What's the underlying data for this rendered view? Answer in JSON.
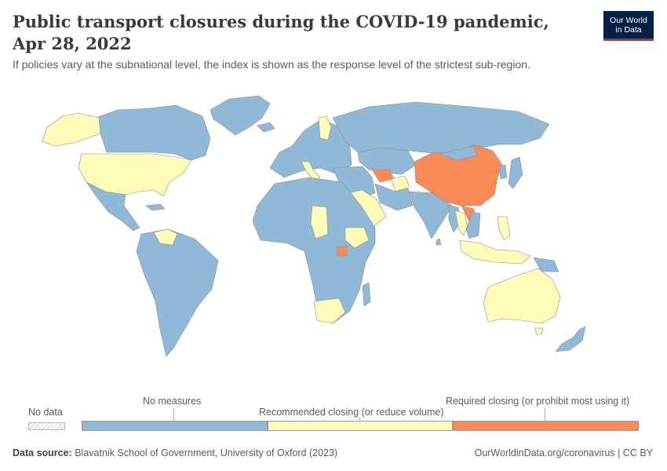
{
  "title": "Public transport closures during the COVID-19 pandemic, Apr 28, 2022",
  "subtitle": "If policies vary at the subnational level, the index is shown as the response level of the strictest sub-region.",
  "logo": {
    "line1": "Our World",
    "line2": "in Data"
  },
  "legend": {
    "no_data": "No data",
    "categories": [
      {
        "label": "No measures",
        "color": "#8fb9d6"
      },
      {
        "label": "Recommended closing (or reduce volume)",
        "color": "#fffbb8"
      },
      {
        "label": "Required closing (or prohibit most using it)",
        "color": "#fa8a56"
      }
    ]
  },
  "colors": {
    "no_measures": "#8fb9d6",
    "recommended": "#fffbb8",
    "required": "#fa8a56",
    "border": "#8d8d8d"
  },
  "map_regions": [
    {
      "name": "Alaska",
      "category": "Recommended closing (or reduce volume)"
    },
    {
      "name": "Canada",
      "category": "No measures"
    },
    {
      "name": "United States",
      "category": "Recommended closing (or reduce volume)"
    },
    {
      "name": "Mexico",
      "category": "No measures"
    },
    {
      "name": "Venezuela",
      "category": "Recommended closing (or reduce volume)"
    },
    {
      "name": "South America",
      "category": "No measures"
    },
    {
      "name": "Greenland",
      "category": "No measures"
    },
    {
      "name": "Europe",
      "category": "No measures"
    },
    {
      "name": "Finland",
      "category": "Recommended closing (or reduce volume)"
    },
    {
      "name": "Italy",
      "category": "Recommended closing (or reduce volume)"
    },
    {
      "name": "Russia",
      "category": "No measures"
    },
    {
      "name": "Africa",
      "category": "No measures"
    },
    {
      "name": "Chad",
      "category": "Recommended closing (or reduce volume)"
    },
    {
      "name": "Ethiopia",
      "category": "Recommended closing (or reduce volume)"
    },
    {
      "name": "Uganda",
      "category": "Required closing (or prohibit most using it)"
    },
    {
      "name": "South Africa",
      "category": "Recommended closing (or reduce volume)"
    },
    {
      "name": "Saudi Arabia",
      "category": "Recommended closing (or reduce volume)"
    },
    {
      "name": "Turkmenistan",
      "category": "Required closing (or prohibit most using it)"
    },
    {
      "name": "Afghanistan",
      "category": "Recommended closing (or reduce volume)"
    },
    {
      "name": "China",
      "category": "Required closing (or prohibit most using it)"
    },
    {
      "name": "Laos",
      "category": "Required closing (or prohibit most using it)"
    },
    {
      "name": "Thailand",
      "category": "Recommended closing (or reduce volume)"
    },
    {
      "name": "India",
      "category": "No measures"
    },
    {
      "name": "Japan",
      "category": "No measures"
    },
    {
      "name": "Philippines",
      "category": "Recommended closing (or reduce volume)"
    },
    {
      "name": "Indonesia",
      "category": "Recommended closing (or reduce volume)"
    },
    {
      "name": "Papua New Guinea",
      "category": "No measures"
    },
    {
      "name": "Australia",
      "category": "Recommended closing (or reduce volume)"
    },
    {
      "name": "New Zealand",
      "category": "No measures"
    }
  ],
  "footer": {
    "source_label": "Data source:",
    "source_text": "Blavatnik School of Government, University of Oxford (2023)",
    "right": "OurWorldinData.org/coronavirus | CC BY"
  }
}
